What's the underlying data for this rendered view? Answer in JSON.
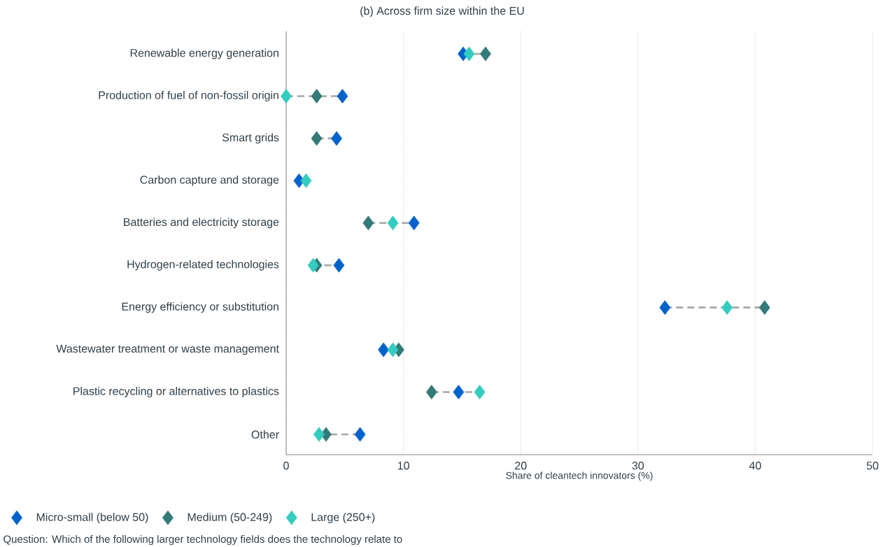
{
  "chart_data": {
    "type": "scatter",
    "orientation": "horizontal",
    "title": "(b) Across firm size within the EU",
    "xlabel": "Share of cleantech innovators (%)",
    "categories": [
      "Renewable energy generation",
      "Production of fuel of non-fossil origin",
      "Smart grids",
      "Carbon capture and storage",
      "Batteries and electricity storage",
      "Hydrogen-related technologies",
      "Energy efficiency or substitution",
      "Wastewater treatment or waste management",
      "Plastic recycling or alternatives to plastics",
      "Other"
    ],
    "series": [
      {
        "name": "Micro-small (below 50)",
        "color": "#0063cc",
        "values": [
          15.1,
          4.8,
          4.3,
          1.1,
          10.9,
          4.5,
          32.3,
          8.3,
          14.7,
          6.3
        ]
      },
      {
        "name": "Medium (50-249)",
        "color": "#337a78",
        "values": [
          17.0,
          2.6,
          2.6,
          null,
          7.0,
          2.6,
          40.8,
          9.6,
          12.4,
          3.4
        ]
      },
      {
        "name": "Large (250+)",
        "color": "#33ccbf",
        "values": [
          15.6,
          0.0,
          null,
          1.7,
          9.1,
          2.3,
          37.6,
          9.1,
          16.5,
          2.8
        ]
      }
    ],
    "xlim": [
      0,
      50
    ],
    "xticks": [
      0,
      10,
      20,
      30,
      40,
      50
    ],
    "grid": "x",
    "marker": "diamond",
    "legend": "bottom left",
    "annotations": [
      "Question: Which of the following larger technology fields does the technology relate to"
    ]
  }
}
